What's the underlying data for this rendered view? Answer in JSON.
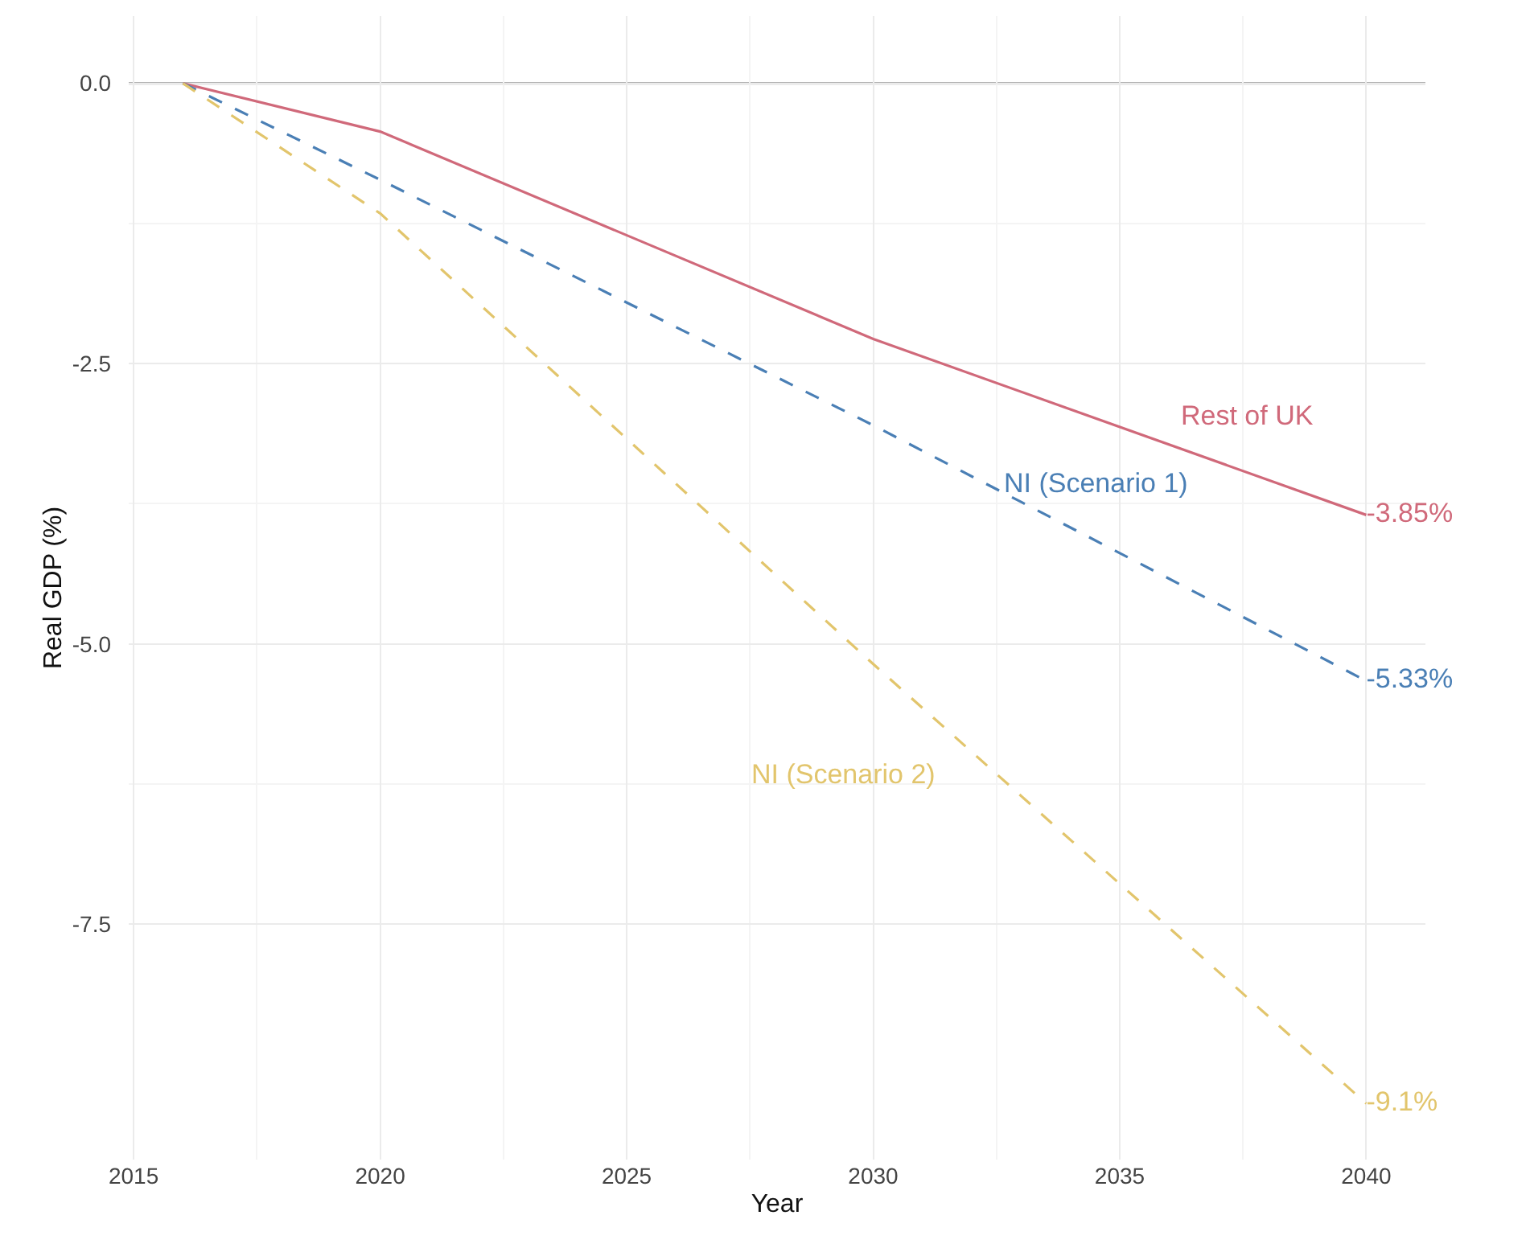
{
  "chart_data": {
    "type": "line",
    "xlabel": "Year",
    "ylabel": "Real GDP (%)",
    "xlim": [
      2014.9,
      2041.2
    ],
    "ylim": [
      -9.6,
      0.6
    ],
    "xticks": [
      2015,
      2020,
      2025,
      2030,
      2035,
      2040
    ],
    "yticks": [
      {
        "value": 0,
        "label": "0.0"
      },
      -2.5,
      {
        "value": -5,
        "label": "-5.0"
      },
      -7.5
    ],
    "grid": true,
    "legend": false,
    "marker": "none",
    "ref_lines": [
      {
        "axis": "y",
        "value": 0,
        "color": "#b3b3b3"
      }
    ],
    "series": [
      {
        "name": "Rest of UK",
        "color": "#d0697a",
        "line_style": "solid",
        "x": [
          2016,
          2020,
          2030,
          2040
        ],
        "values": [
          0,
          -0.43,
          -2.28,
          -3.85
        ],
        "value_labels": [
          null,
          null,
          null,
          "-3.85%"
        ]
      },
      {
        "name": "NI (Scenario 1)",
        "color": "#4a7fb5",
        "line_style": "dashed",
        "x": [
          2016,
          2020,
          2030,
          2040
        ],
        "values": [
          0,
          -0.86,
          -3.05,
          -5.33
        ],
        "value_labels": [
          null,
          null,
          null,
          "-5.33%"
        ]
      },
      {
        "name": "NI (Scenario 2)",
        "color": "#e2c56c",
        "line_style": "dashed",
        "x": [
          2016,
          2020,
          2030,
          2040
        ],
        "values": [
          0,
          -1.16,
          -5.18,
          -9.1
        ],
        "value_labels": [
          null,
          null,
          null,
          "-9.1%"
        ]
      }
    ]
  }
}
